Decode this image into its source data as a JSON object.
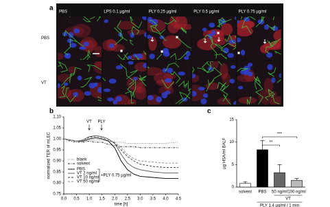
{
  "panel_a": {
    "label": "a",
    "columns": [
      "PBS",
      "LPS 0.1 µg/ml",
      "PLY 0.25 µg/ml",
      "PLY 0.5 µg/ml",
      "PLY 0.75 µg/ml"
    ],
    "rows": [
      "PBS",
      "VT"
    ]
  },
  "chart_data": [
    {
      "type": "line",
      "label": "b",
      "xlabel": "time [h]",
      "ylabel": "normalized TER of mLEC",
      "x": [
        0,
        0.25,
        0.5,
        0.75,
        1.0,
        1.25,
        1.5,
        1.75,
        2.0,
        2.25,
        2.5,
        2.75,
        3.0,
        3.5,
        4.0,
        4.5
      ],
      "xlim": [
        0,
        4.5
      ],
      "xticks": [
        {
          "value": 0,
          "label": "0.0"
        },
        0.5,
        {
          "value": 1,
          "label": "1.0"
        },
        1.5,
        {
          "value": 2,
          "label": "2.0"
        },
        2.5,
        {
          "value": 3,
          "label": "3.0"
        },
        3.5,
        {
          "value": 4,
          "label": "4.0"
        },
        4.5
      ],
      "ylim": [
        0.75,
        1.1
      ],
      "yticks": [
        0.75,
        {
          "value": 0.8,
          "label": "0.80"
        },
        0.85,
        {
          "value": 0.9,
          "label": "0.90"
        },
        0.95,
        {
          "value": 1,
          "label": "1.00"
        },
        1.05,
        {
          "value": 1.1,
          "label": "1.10"
        }
      ],
      "annotations": [
        "VT",
        "PLY",
        "+PLY 0.75 µg/ml"
      ],
      "series": [
        {
          "name": "blank",
          "color": "#777777",
          "style": "dotted",
          "values": [
            1.0,
            0.995,
            0.99,
            0.99,
            0.995,
            0.995,
            0.995,
            0.99,
            0.985,
            0.985,
            0.98,
            0.98,
            0.98,
            0.98,
            0.98,
            0.985
          ]
        },
        {
          "name": "solvent",
          "color": "#222222",
          "style": "dashdot",
          "values": [
            1.0,
            0.99,
            0.985,
            0.985,
            0.99,
            0.985,
            0.985,
            0.975,
            0.97,
            0.965,
            0.965,
            0.965,
            0.96,
            0.96,
            0.96,
            0.96
          ]
        },
        {
          "name": "PBS",
          "color": "#000000",
          "style": "solid",
          "values": [
            1.0,
            0.995,
            0.99,
            0.99,
            1.0,
            1.005,
            1.0,
            0.99,
            0.96,
            0.9,
            0.86,
            0.84,
            0.83,
            0.825,
            0.82,
            0.82
          ]
        },
        {
          "name": "VT 2 ng/ml",
          "color": "#555555",
          "style": "solid",
          "values": [
            1.0,
            0.995,
            0.99,
            0.995,
            1.01,
            1.015,
            1.01,
            1.0,
            0.98,
            0.93,
            0.89,
            0.87,
            0.86,
            0.85,
            0.845,
            0.845
          ]
        },
        {
          "name": "VT 10 ng/ml",
          "color": "#333333",
          "style": "dashed",
          "values": [
            1.0,
            0.995,
            0.99,
            0.995,
            1.01,
            1.01,
            1.005,
            0.995,
            0.98,
            0.95,
            0.92,
            0.9,
            0.885,
            0.875,
            0.87,
            0.87
          ]
        },
        {
          "name": "VT 50 ng/ml",
          "color": "#888888",
          "style": "dashed",
          "values": [
            1.0,
            0.995,
            0.99,
            0.995,
            1.005,
            1.01,
            1.005,
            0.995,
            0.985,
            0.96,
            0.93,
            0.91,
            0.9,
            0.895,
            0.89,
            0.89
          ]
        }
      ]
    },
    {
      "type": "bar",
      "label": "c",
      "ylabel": "µg HSA/ml BALF",
      "categories": [
        "solvent",
        "PBS",
        "50 ng/ml",
        "100 ng/ml"
      ],
      "values": [
        0.8,
        8.3,
        3.2,
        1.5
      ],
      "errors": [
        0.4,
        2.0,
        1.8,
        0.4
      ],
      "colors": [
        "#ffffff",
        "#000000",
        "#666666",
        "#bbbbbb"
      ],
      "ylim": [
        0,
        15
      ],
      "yticks": [
        0,
        5,
        10,
        15
      ],
      "significance": [
        "**",
        "***"
      ],
      "group_labels": [
        "VT",
        "PLY 1.4 µg/ml / 1 min"
      ]
    }
  ]
}
